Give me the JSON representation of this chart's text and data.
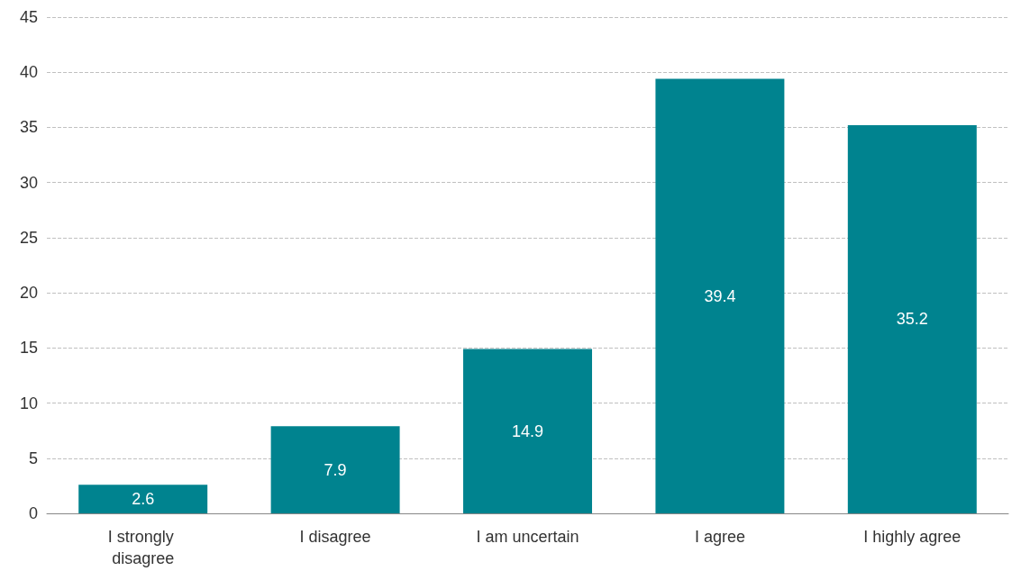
{
  "chart_data": {
    "type": "bar",
    "categories": [
      "I strongly disagree",
      "I disagree",
      "I am uncertain",
      "I agree",
      "I highly agree"
    ],
    "values": [
      2.6,
      7.9,
      14.9,
      39.4,
      35.2
    ],
    "color": "#00838f",
    "ylim": [
      0,
      45
    ],
    "yticks": [
      0,
      5,
      10,
      15,
      20,
      25,
      30,
      35,
      40,
      45
    ],
    "grid": "y",
    "data_labels": true
  }
}
